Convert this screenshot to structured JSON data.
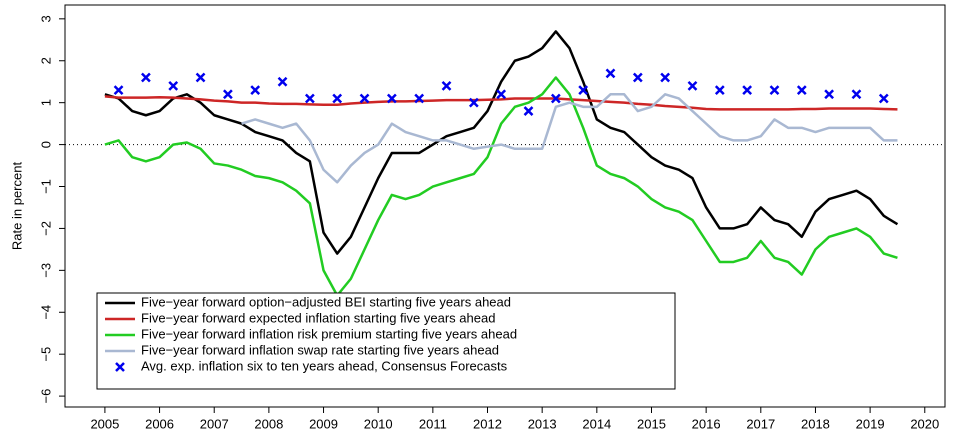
{
  "chart_data": {
    "type": "line",
    "y_label": "Rate in percent",
    "xlim": [
      2004.27,
      2020.37
    ],
    "ylim": [
      -6.26,
      3.33
    ],
    "xticks": [
      2005,
      2006,
      2007,
      2008,
      2009,
      2010,
      2011,
      2012,
      2013,
      2014,
      2015,
      2016,
      2017,
      2018,
      2019,
      2020
    ],
    "yticks": [
      {
        "value": -6,
        "label": "−6"
      },
      {
        "value": -5,
        "label": "−5"
      },
      {
        "value": -4,
        "label": "−4"
      },
      {
        "value": -3,
        "label": "−3"
      },
      {
        "value": -2,
        "label": "−2"
      },
      {
        "value": -1,
        "label": "−1"
      },
      0,
      1,
      2,
      3
    ],
    "reference_line": 0,
    "legend_position": "bottomleft",
    "x": [
      2005,
      2005.25,
      2005.5,
      2005.75,
      2006,
      2006.25,
      2006.5,
      2006.75,
      2007,
      2007.25,
      2007.5,
      2007.75,
      2008,
      2008.25,
      2008.5,
      2008.75,
      2009,
      2009.25,
      2009.5,
      2009.75,
      2010,
      2010.25,
      2010.5,
      2010.75,
      2011,
      2011.25,
      2011.5,
      2011.75,
      2012,
      2012.25,
      2012.5,
      2012.75,
      2013,
      2013.25,
      2013.5,
      2013.75,
      2014,
      2014.25,
      2014.5,
      2014.75,
      2015,
      2015.25,
      2015.5,
      2015.75,
      2016,
      2016.25,
      2016.5,
      2016.75,
      2017,
      2017.25,
      2017.5,
      2017.75,
      2018,
      2018.25,
      2018.5,
      2018.75,
      2019,
      2019.25,
      2019.5
    ],
    "series": [
      {
        "name": "Five−year forward option−adjusted BEI starting five years ahead",
        "color": "#000000",
        "values": [
          1.2,
          1.1,
          0.8,
          0.7,
          0.8,
          1.1,
          1.2,
          1.0,
          0.7,
          0.6,
          0.5,
          0.3,
          0.2,
          0.1,
          -0.2,
          -0.4,
          -2.1,
          -2.6,
          -2.2,
          -1.5,
          -0.8,
          -0.2,
          -0.2,
          -0.2,
          0.0,
          0.2,
          0.3,
          0.4,
          0.8,
          1.5,
          2.0,
          2.1,
          2.3,
          2.7,
          2.3,
          1.5,
          0.6,
          0.4,
          0.3,
          0.0,
          -0.3,
          -0.5,
          -0.6,
          -0.8,
          -1.5,
          -2.0,
          -2.0,
          -1.9,
          -1.5,
          -1.8,
          -1.9,
          -2.2,
          -1.6,
          -1.3,
          -1.2,
          -1.1,
          -1.3,
          -1.7,
          -1.9
        ]
      },
      {
        "name": "Five−year forward expected inflation starting five years ahead",
        "color": "#cd2626",
        "values": [
          1.15,
          1.12,
          1.12,
          1.12,
          1.13,
          1.12,
          1.1,
          1.08,
          1.05,
          1.03,
          1.0,
          1.0,
          0.98,
          0.97,
          0.97,
          0.96,
          0.95,
          0.95,
          0.98,
          1.0,
          1.02,
          1.03,
          1.03,
          1.04,
          1.05,
          1.06,
          1.06,
          1.06,
          1.07,
          1.08,
          1.1,
          1.1,
          1.1,
          1.1,
          1.08,
          1.06,
          1.04,
          1.02,
          1.0,
          0.97,
          0.95,
          0.92,
          0.9,
          0.88,
          0.85,
          0.84,
          0.84,
          0.84,
          0.84,
          0.84,
          0.84,
          0.85,
          0.85,
          0.86,
          0.86,
          0.86,
          0.86,
          0.85,
          0.84
        ]
      },
      {
        "name": "Five−year forward inflation risk premium starting five years ahead",
        "color": "#22cc22",
        "values": [
          0.0,
          0.1,
          -0.3,
          -0.4,
          -0.3,
          0.0,
          0.05,
          -0.1,
          -0.45,
          -0.5,
          -0.6,
          -0.75,
          -0.8,
          -0.9,
          -1.1,
          -1.4,
          -3.0,
          -3.6,
          -3.2,
          -2.5,
          -1.8,
          -1.2,
          -1.3,
          -1.2,
          -1.0,
          -0.9,
          -0.8,
          -0.7,
          -0.3,
          0.5,
          0.9,
          1.0,
          1.2,
          1.6,
          1.2,
          0.4,
          -0.5,
          -0.7,
          -0.8,
          -1.0,
          -1.3,
          -1.5,
          -1.6,
          -1.8,
          -2.3,
          -2.8,
          -2.8,
          -2.7,
          -2.3,
          -2.7,
          -2.8,
          -3.1,
          -2.5,
          -2.2,
          -2.1,
          -2.0,
          -2.2,
          -2.6,
          -2.7
        ]
      },
      {
        "name": "Five−year forward inflation swap rate starting five years ahead",
        "color": "#a9b8d2",
        "values": [
          null,
          null,
          null,
          null,
          null,
          null,
          null,
          null,
          null,
          null,
          0.5,
          0.6,
          0.5,
          0.4,
          0.5,
          0.1,
          -0.6,
          -0.9,
          -0.5,
          -0.2,
          0.0,
          0.5,
          0.3,
          0.2,
          0.1,
          0.1,
          0.0,
          -0.1,
          -0.05,
          0.0,
          -0.1,
          -0.1,
          -0.1,
          0.9,
          1.0,
          0.9,
          0.9,
          1.2,
          1.2,
          0.8,
          0.9,
          1.2,
          1.1,
          0.8,
          0.5,
          0.2,
          0.1,
          0.1,
          0.2,
          0.6,
          0.4,
          0.4,
          0.3,
          0.4,
          0.4,
          0.4,
          0.4,
          0.1,
          0.1
        ]
      },
      {
        "name": "Avg. exp. inflation six to ten years ahead, Consensus Forecasts",
        "color": "#0000ee",
        "type": "scatter",
        "marker": "x",
        "x": [
          2005.25,
          2005.75,
          2006.25,
          2006.75,
          2007.25,
          2007.75,
          2008.25,
          2008.75,
          2009.25,
          2009.75,
          2010.25,
          2010.75,
          2011.25,
          2011.75,
          2012.25,
          2012.75,
          2013.25,
          2013.75,
          2014.25,
          2014.75,
          2015.25,
          2015.75,
          2016.25,
          2016.75,
          2017.25,
          2017.75,
          2018.25,
          2018.75,
          2019.25
        ],
        "values": [
          1.3,
          1.6,
          1.4,
          1.6,
          1.2,
          1.3,
          1.5,
          1.1,
          1.1,
          1.1,
          1.1,
          1.1,
          1.4,
          1.0,
          1.2,
          0.8,
          1.1,
          1.3,
          1.7,
          1.6,
          1.6,
          1.4,
          1.3,
          1.3,
          1.3,
          1.3,
          1.2,
          1.2,
          1.1
        ]
      }
    ]
  }
}
